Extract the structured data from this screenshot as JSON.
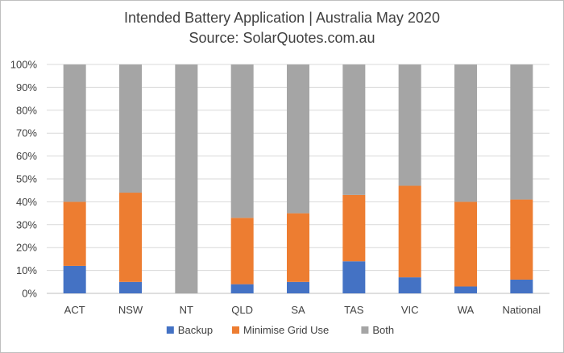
{
  "chart_data": {
    "type": "bar",
    "stacked": true,
    "stacking": "percent",
    "title": "Intended Battery Application | Australia May 2020",
    "subtitle": "Source: SolarQuotes.com.au",
    "categories": [
      "ACT",
      "NSW",
      "NT",
      "QLD",
      "SA",
      "TAS",
      "VIC",
      "WA",
      "National"
    ],
    "series": [
      {
        "name": "Backup",
        "color": "#4472c4",
        "values": [
          12,
          5,
          0,
          4,
          5,
          14,
          7,
          3,
          6
        ]
      },
      {
        "name": "Minimise Grid Use",
        "color": "#ed7d31",
        "values": [
          28,
          39,
          0,
          29,
          30,
          29,
          40,
          37,
          35
        ]
      },
      {
        "name": "Both",
        "color": "#a5a5a5",
        "values": [
          60,
          56,
          100,
          67,
          65,
          57,
          53,
          60,
          59
        ]
      }
    ],
    "ylim": [
      0,
      100
    ],
    "yticks": [
      "0%",
      "10%",
      "20%",
      "30%",
      "40%",
      "50%",
      "60%",
      "70%",
      "80%",
      "90%",
      "100%"
    ],
    "grid": true,
    "legend": "bottom"
  }
}
